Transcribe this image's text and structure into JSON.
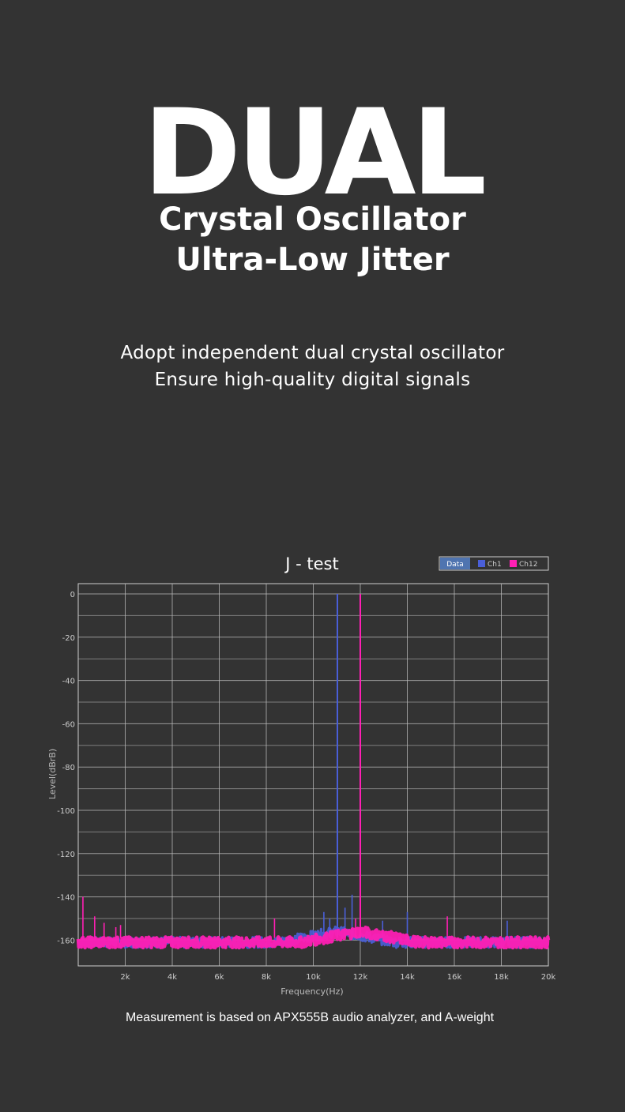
{
  "headline": {
    "title": "DUAL",
    "subtitle_line1": "Crystal Oscillator",
    "subtitle_line2": "Ultra-Low Jitter"
  },
  "description": {
    "line1": "Adopt independent dual crystal oscillator",
    "line2": "Ensure high-quality digital signals"
  },
  "footnote": "Measurement is based on APX555B audio analyzer, and A-weight",
  "colors": {
    "background": "#333333",
    "grid": "#bbbbbb",
    "ch1": "#4a5fd8",
    "ch12": "#ff1fb4"
  },
  "chart_data": {
    "type": "line",
    "title": "J - test",
    "xlabel": "Frequency(Hz)",
    "ylabel": "Level(dBrB)",
    "xlim": [
      0,
      20000
    ],
    "ylim": [
      -170,
      4
    ],
    "x_ticks": [
      2000,
      4000,
      6000,
      8000,
      10000,
      12000,
      14000,
      16000,
      18000,
      20000
    ],
    "x_tick_labels": [
      "2k",
      "4k",
      "6k",
      "8k",
      "10k",
      "12k",
      "14k",
      "16k",
      "18k",
      "20k"
    ],
    "y_ticks": [
      0,
      -20,
      -40,
      -60,
      -80,
      -100,
      -120,
      -140,
      -160
    ],
    "y_tick_labels": [
      "0",
      "-20",
      "-40",
      "-60",
      "-80",
      "-100",
      "-120",
      "-140",
      "-160"
    ],
    "grid": true,
    "legend": {
      "placement": "top-right",
      "header": "Data"
    },
    "noise_floor": -161,
    "series": [
      {
        "name": "Ch1",
        "color": "#4a5fd8",
        "peaks": [
          {
            "x": 11025,
            "y": 0
          },
          {
            "x": 10450,
            "y": -147
          },
          {
            "x": 10700,
            "y": -150
          },
          {
            "x": 11350,
            "y": -145
          },
          {
            "x": 11650,
            "y": -139
          },
          {
            "x": 12950,
            "y": -151
          },
          {
            "x": 14000,
            "y": -147
          },
          {
            "x": 18250,
            "y": -151
          }
        ]
      },
      {
        "name": "Ch12",
        "color": "#ff1fb4",
        "peaks": [
          {
            "x": 12000,
            "y": 0
          },
          {
            "x": 200,
            "y": -140
          },
          {
            "x": 700,
            "y": -149
          },
          {
            "x": 1100,
            "y": -152
          },
          {
            "x": 1600,
            "y": -154
          },
          {
            "x": 1800,
            "y": -153
          },
          {
            "x": 8350,
            "y": -150
          },
          {
            "x": 11800,
            "y": -150
          },
          {
            "x": 15700,
            "y": -149
          }
        ]
      }
    ]
  }
}
